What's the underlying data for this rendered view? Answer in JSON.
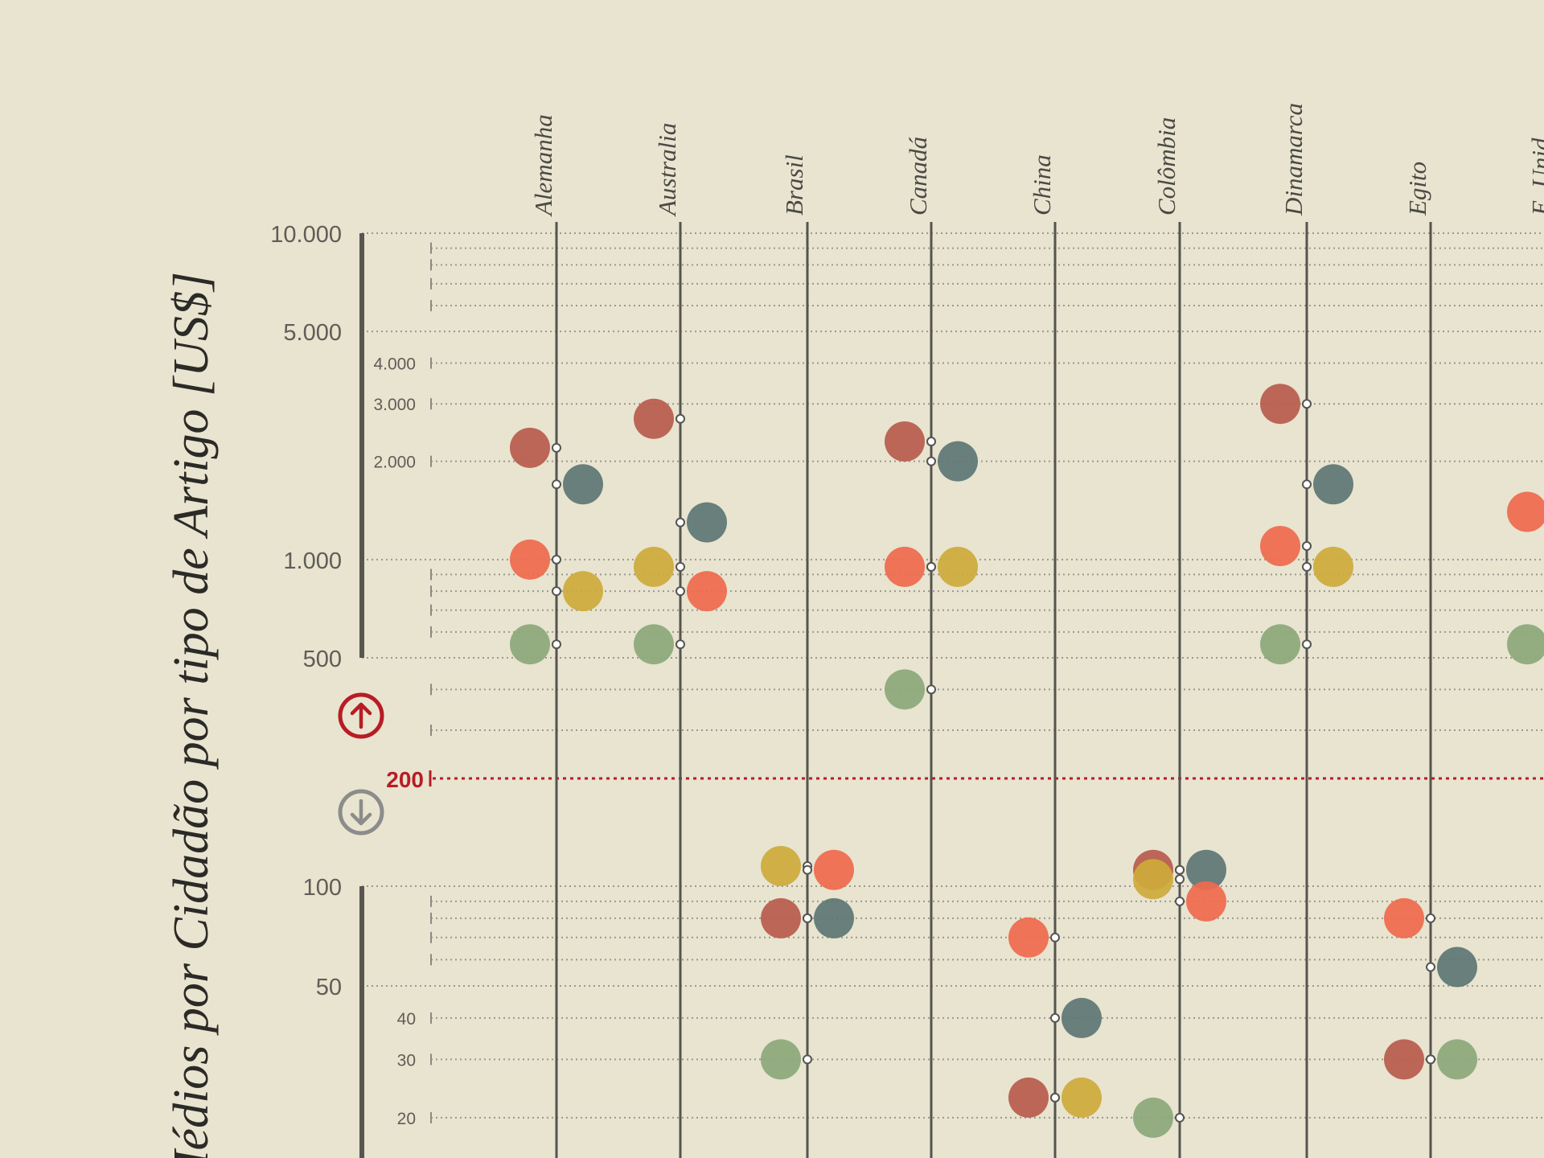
{
  "chart_data": {
    "type": "scatter",
    "title": "",
    "ylabel": "Médios por Cidadão por tipo de Artigo [US$]",
    "yscale": "log",
    "threshold": {
      "label": "200",
      "value": 200,
      "color": "#b81c25"
    },
    "upper_ticks": [
      "10.000",
      "5.000",
      "4.000",
      "3.000",
      "2.000",
      "1.000",
      "500"
    ],
    "lower_ticks": [
      "100",
      "50",
      "40",
      "30",
      "20"
    ],
    "categories": [
      "Alemanha",
      "Australia",
      "Brasil",
      "Canadá",
      "China",
      "Colômbia",
      "Dinamarca",
      "Egito",
      "E. Unid"
    ],
    "series": [
      {
        "key": "dark-red",
        "color": "#b85d4e",
        "values": [
          2200,
          2700,
          80,
          2300,
          23,
          112,
          3000,
          30,
          null
        ]
      },
      {
        "key": "teal",
        "color": "#5e7774",
        "values": [
          1700,
          1300,
          80,
          2000,
          40,
          112,
          1700,
          57,
          null
        ]
      },
      {
        "key": "orange",
        "color": "#ef6a4d",
        "values": [
          1000,
          800,
          112,
          950,
          70,
          90,
          1100,
          80,
          1400
        ]
      },
      {
        "key": "yellow",
        "color": "#cdab3b",
        "values": [
          800,
          950,
          115,
          950,
          23,
          105,
          950,
          null,
          null
        ]
      },
      {
        "key": "green",
        "color": "#8ca97b",
        "values": [
          550,
          550,
          30,
          400,
          null,
          20,
          550,
          30,
          550
        ]
      }
    ]
  }
}
